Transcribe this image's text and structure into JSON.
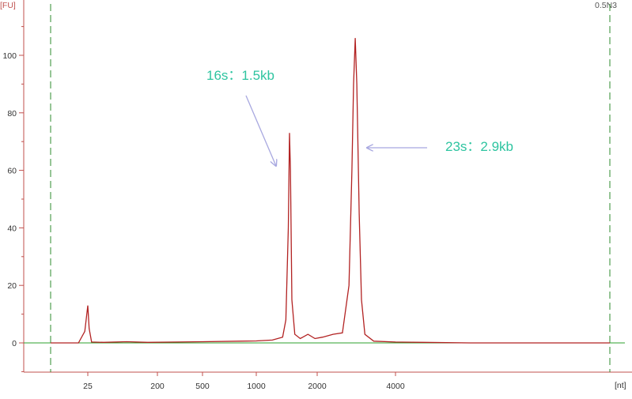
{
  "chart_data": {
    "type": "line",
    "instrument_tag": "0.5N3",
    "ylabel": "[FU]",
    "xlabel": "[nt]",
    "ylim": [
      -10,
      115
    ],
    "y_ticks": [
      0,
      20,
      40,
      60,
      80,
      100
    ],
    "x_ticks": [
      "25",
      "200",
      "500",
      "1000",
      "2000",
      "4000"
    ],
    "grid": false,
    "series": [
      {
        "color": "#b22222",
        "points": [
          {
            "x": 15,
            "y": 0
          },
          {
            "x": 22,
            "y": 0
          },
          {
            "x": 24,
            "y": 4
          },
          {
            "x": 25,
            "y": 13
          },
          {
            "x": 26,
            "y": 5
          },
          {
            "x": 28,
            "y": 0.3
          },
          {
            "x": 40,
            "y": 0.2
          },
          {
            "x": 80,
            "y": 0.4
          },
          {
            "x": 150,
            "y": 0.2
          },
          {
            "x": 300,
            "y": 0.3
          },
          {
            "x": 500,
            "y": 0.4
          },
          {
            "x": 800,
            "y": 0.6
          },
          {
            "x": 1000,
            "y": 0.7
          },
          {
            "x": 1200,
            "y": 1.0
          },
          {
            "x": 1350,
            "y": 2.0
          },
          {
            "x": 1400,
            "y": 8
          },
          {
            "x": 1440,
            "y": 40
          },
          {
            "x": 1460,
            "y": 73
          },
          {
            "x": 1475,
            "y": 60
          },
          {
            "x": 1500,
            "y": 15
          },
          {
            "x": 1550,
            "y": 3
          },
          {
            "x": 1650,
            "y": 1.5
          },
          {
            "x": 1800,
            "y": 3
          },
          {
            "x": 1950,
            "y": 1.5
          },
          {
            "x": 2100,
            "y": 2
          },
          {
            "x": 2300,
            "y": 3
          },
          {
            "x": 2500,
            "y": 3.5
          },
          {
            "x": 2650,
            "y": 20
          },
          {
            "x": 2720,
            "y": 60
          },
          {
            "x": 2760,
            "y": 90
          },
          {
            "x": 2800,
            "y": 106
          },
          {
            "x": 2840,
            "y": 90
          },
          {
            "x": 2900,
            "y": 45
          },
          {
            "x": 2960,
            "y": 15
          },
          {
            "x": 3050,
            "y": 3
          },
          {
            "x": 3300,
            "y": 0.6
          },
          {
            "x": 4000,
            "y": 0.3
          },
          {
            "x": 4500,
            "y": 0.2
          },
          {
            "x": 5500,
            "y": 0
          },
          {
            "x": 10000,
            "y": 0
          }
        ]
      }
    ],
    "markers": {
      "lower_marker_nt": 25,
      "upper_marker_nt": 10000,
      "color": "#2e8b2e"
    },
    "annotations": [
      {
        "text": "16s：1.5kb",
        "color": "#2ec4a0",
        "points_to": {
          "x": 1460,
          "y": 62
        }
      },
      {
        "text": "23s：2.9kb",
        "color": "#2ec4a0",
        "points_to": {
          "x": 2900,
          "y": 68
        }
      }
    ],
    "colors": {
      "axis": "#c0504d",
      "baseline": "#2ea02e",
      "trace": "#b22222",
      "arrow": "#a8a8e0",
      "annotation": "#2ec4a0",
      "corner_tag": "#555555"
    }
  }
}
